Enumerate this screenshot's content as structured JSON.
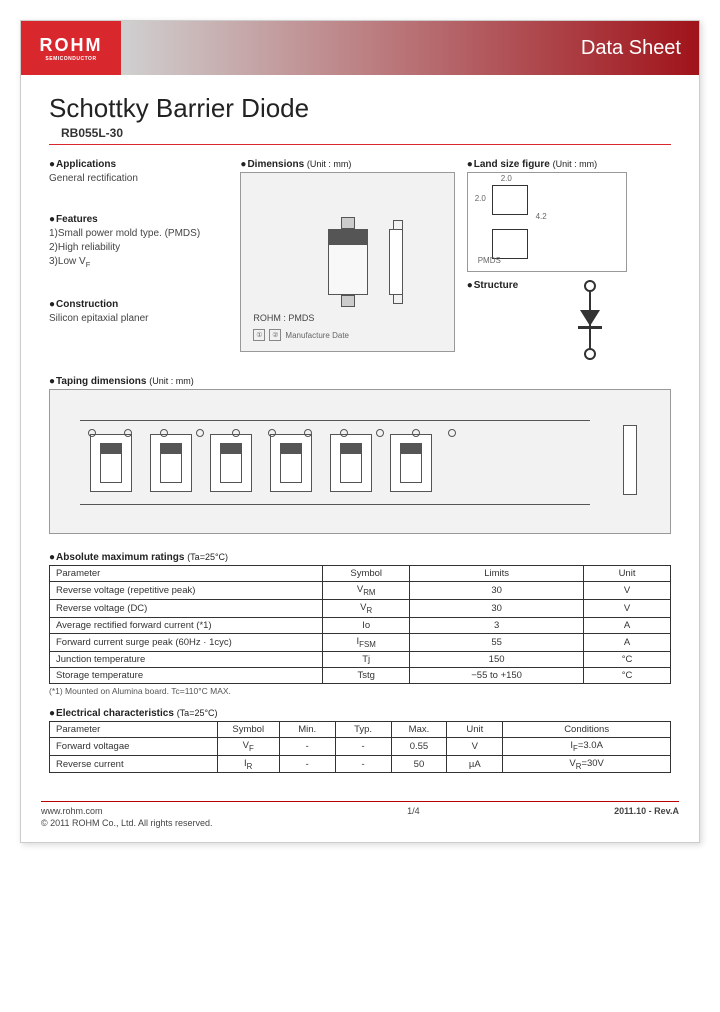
{
  "brand": {
    "name": "ROHM",
    "sub": "SEMICONDUCTOR"
  },
  "doc_label": "Data Sheet",
  "title": "Schottky Barrier Diode",
  "part_number": "RB055L-30",
  "applications": {
    "title": "Applications",
    "body": "General rectification"
  },
  "features": {
    "title": "Features",
    "items": [
      "1)Small power mold type. (PMDS)",
      "2)High reliability",
      "3)Low V"
    ],
    "vf_sub": "F"
  },
  "construction": {
    "title": "Construction",
    "body": "Silicon epitaxial planer"
  },
  "dimensions": {
    "title": "Dimensions",
    "unit": "(Unit : mm)",
    "rohm_pmds": "ROHM : PMDS",
    "mfg": "Manufacture Date"
  },
  "land": {
    "title": "Land size figure",
    "unit": "(Unit : mm)",
    "pmds": "PMDS",
    "w": "2.0",
    "h": "2.0",
    "gap": "4.2"
  },
  "structure": {
    "title": "Structure"
  },
  "taping": {
    "title": "Taping dimensions",
    "unit": "(Unit : mm)"
  },
  "abs_max": {
    "title": "Absolute maximum ratings",
    "cond": "(Ta=25°C)",
    "headers": [
      "Parameter",
      "Symbol",
      "Limits",
      "Unit"
    ],
    "rows": [
      [
        "Reverse voltage (repetitive peak)",
        "V<sub>RM</sub>",
        "30",
        "V"
      ],
      [
        "Reverse voltage (DC)",
        "V<sub>R</sub>",
        "30",
        "V"
      ],
      [
        "Average rectified forward current (*1)",
        "Io",
        "3",
        "A"
      ],
      [
        "Forward current surge peak (60Hz · 1cyc)",
        "I<sub>FSM</sub>",
        "55",
        "A"
      ],
      [
        "Junction temperature",
        "Tj",
        "150",
        "°C"
      ],
      [
        "Storage temperature",
        "Tstg",
        "−55 to +150",
        "°C"
      ]
    ],
    "footnote": "(*1) Mounted on Alumina board. Tc=110°C MAX."
  },
  "elec": {
    "title": "Electrical characteristics",
    "cond": "(Ta=25°C)",
    "headers": [
      "Parameter",
      "Symbol",
      "Min.",
      "Typ.",
      "Max.",
      "Unit",
      "Conditions"
    ],
    "rows": [
      [
        "Forward voltagae",
        "V<sub>F</sub>",
        "-",
        "-",
        "0.55",
        "V",
        "I<sub>F</sub>=3.0A"
      ],
      [
        "Reverse current",
        "I<sub>R</sub>",
        "-",
        "-",
        "50",
        "µA",
        "V<sub>R</sub>=30V"
      ]
    ]
  },
  "footer": {
    "url": "www.rohm.com",
    "copyright": "© 2011 ROHM Co., Ltd. All rights reserved.",
    "page": "1/4",
    "rev": "2011.10 -   Rev.A"
  }
}
